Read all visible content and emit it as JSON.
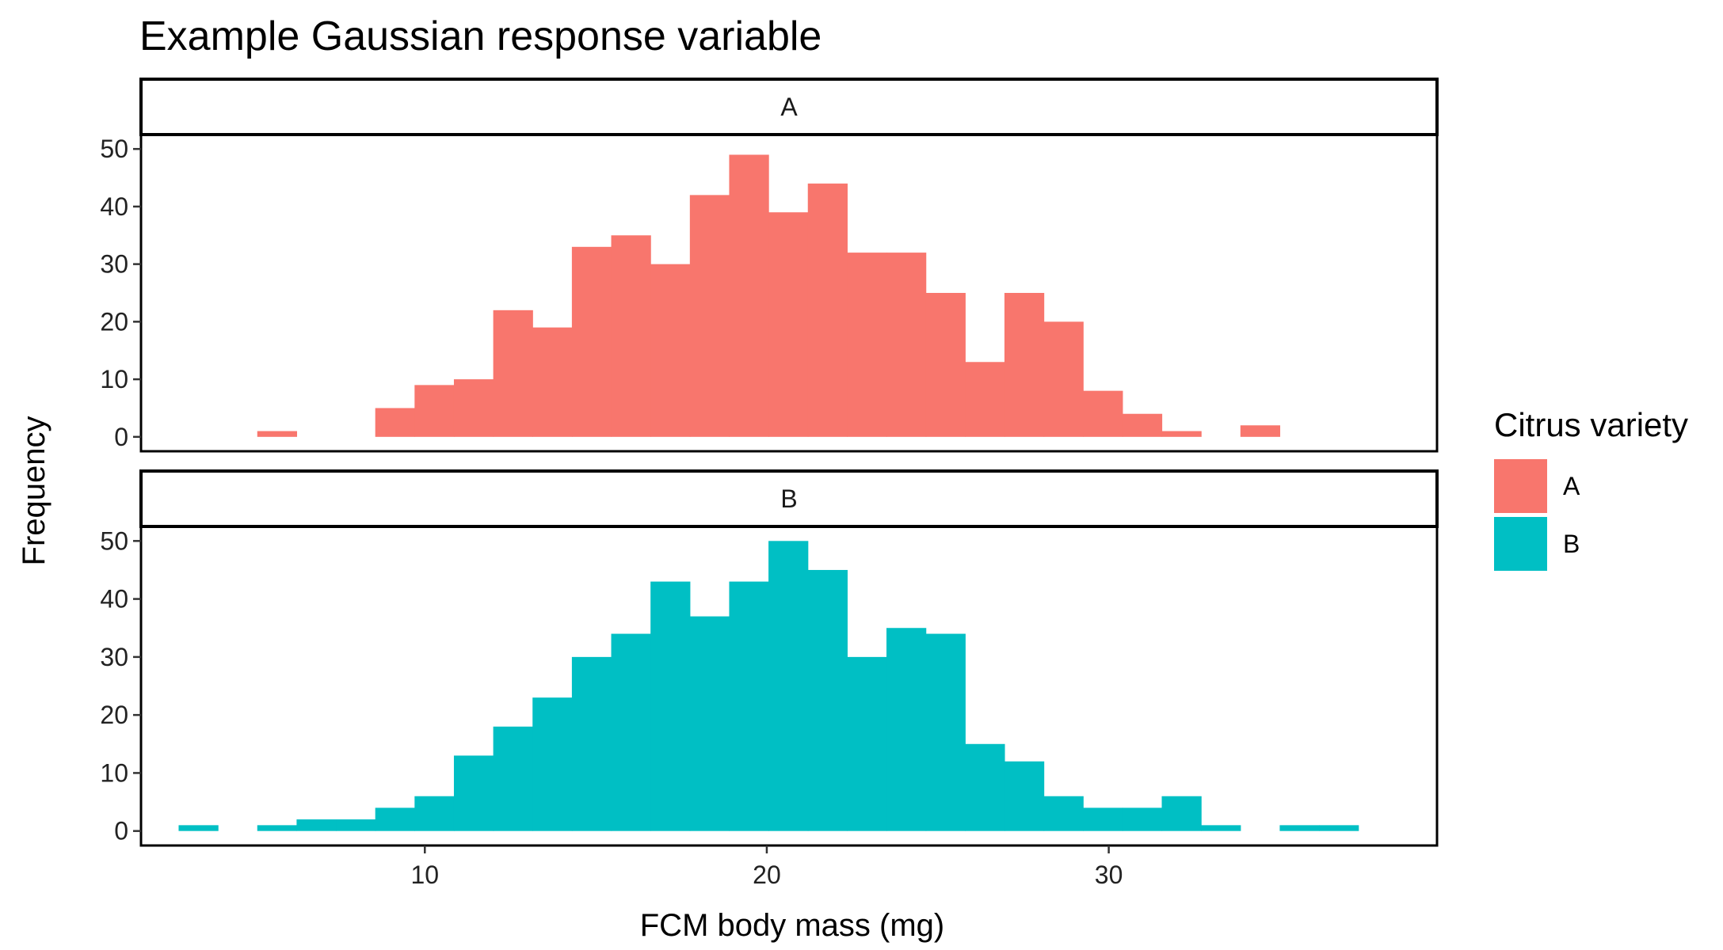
{
  "chart_data": {
    "type": "bar",
    "title": "Example Gaussian response variable",
    "xlabel": "FCM body mass (mg)",
    "ylabel": "Frequency",
    "xlim": [
      1.7,
      39.6
    ],
    "ylim": [
      -2.5,
      52.5
    ],
    "x_ticks": [
      10,
      20,
      30
    ],
    "y_ticks": [
      0,
      10,
      20,
      30,
      40,
      50
    ],
    "bin_start": 2.8,
    "bin_width": 1.15,
    "legend_title": "Citrus variety",
    "legend_position": "right",
    "grid": false,
    "facets": [
      {
        "strip_label": "A",
        "series": "A",
        "color": "#F8766D",
        "counts": [
          0,
          0,
          1,
          0,
          0,
          5,
          9,
          10,
          22,
          19,
          33,
          35,
          30,
          42,
          49,
          39,
          44,
          32,
          32,
          25,
          13,
          25,
          20,
          8,
          4,
          1,
          0,
          2,
          0,
          0
        ]
      },
      {
        "strip_label": "B",
        "series": "B",
        "color": "#00BFC4",
        "counts": [
          1,
          0,
          1,
          2,
          2,
          4,
          6,
          13,
          18,
          23,
          30,
          34,
          43,
          37,
          43,
          50,
          45,
          30,
          35,
          34,
          15,
          12,
          6,
          4,
          4,
          6,
          1,
          0,
          1,
          1
        ]
      }
    ],
    "legend_items": [
      {
        "label": "A",
        "color": "#F8766D"
      },
      {
        "label": "B",
        "color": "#00BFC4"
      }
    ]
  }
}
